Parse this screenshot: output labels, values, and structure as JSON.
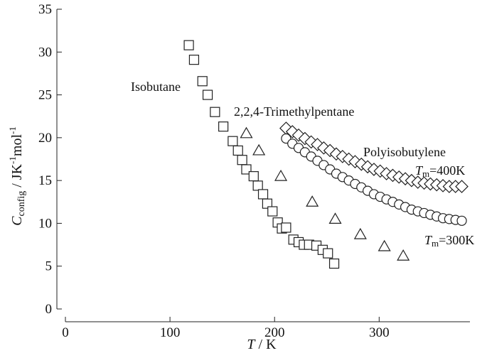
{
  "chart_data": {
    "type": "scatter",
    "xlim": [
      0,
      380
    ],
    "ylim": [
      0,
      35
    ],
    "x_ticks": [
      0,
      100,
      200,
      300
    ],
    "y_ticks": [
      0,
      5,
      10,
      15,
      20,
      25,
      30,
      35
    ],
    "grid": false,
    "xlabel": {
      "main": "T",
      "sep": " / ",
      "unit": "K"
    },
    "ylabel": {
      "main": "C",
      "sub": "config",
      "sep": " / ",
      "unit1": "JK",
      "sup1": "-1",
      "unit2": "mol",
      "sup2": "-1"
    },
    "series": [
      {
        "name": "Isobutane",
        "marker": "square",
        "x": [
          118,
          123,
          131,
          136,
          143,
          151,
          160,
          165,
          169,
          173,
          180,
          184,
          189,
          193,
          198,
          203,
          207,
          211,
          218,
          223,
          228,
          233,
          240,
          246,
          251,
          257
        ],
        "y": [
          30.8,
          29.1,
          26.6,
          25.0,
          23.0,
          21.3,
          19.6,
          18.5,
          17.4,
          16.3,
          15.5,
          14.4,
          13.4,
          12.3,
          11.4,
          10.1,
          9.4,
          9.5,
          8.1,
          7.8,
          7.5,
          7.5,
          7.4,
          6.9,
          6.5,
          5.3
        ]
      },
      {
        "name": "2,2,4-Trimethylpentane",
        "marker": "triangle",
        "x": [
          173,
          185,
          206,
          236,
          258,
          282,
          305,
          323
        ],
        "y": [
          20.5,
          18.5,
          15.5,
          12.5,
          10.5,
          8.7,
          7.3,
          6.2
        ]
      },
      {
        "name": "Polyisobutylene",
        "note": "Tm=400K",
        "marker": "diamond",
        "x": [
          211,
          217,
          223,
          229,
          235,
          241,
          247,
          253,
          259,
          265,
          271,
          277,
          283,
          289,
          295,
          301,
          307,
          313,
          319,
          325,
          331,
          337,
          343,
          349,
          355,
          361,
          367,
          373,
          379
        ],
        "y": [
          21.1,
          20.7,
          20.3,
          19.9,
          19.5,
          19.2,
          18.8,
          18.5,
          18.1,
          17.8,
          17.5,
          17.2,
          16.9,
          16.6,
          16.3,
          16.1,
          15.8,
          15.6,
          15.4,
          15.2,
          15.0,
          14.8,
          14.7,
          14.6,
          14.5,
          14.4,
          14.3,
          14.3,
          14.3
        ]
      },
      {
        "name": "",
        "note": "Tm=300K",
        "marker": "circle",
        "x": [
          211,
          217,
          223,
          229,
          235,
          241,
          247,
          253,
          259,
          265,
          271,
          277,
          283,
          289,
          295,
          301,
          307,
          313,
          319,
          325,
          331,
          337,
          343,
          349,
          355,
          361,
          367,
          373,
          379
        ],
        "y": [
          19.9,
          19.3,
          18.8,
          18.3,
          17.8,
          17.3,
          16.8,
          16.3,
          15.8,
          15.4,
          15.0,
          14.6,
          14.2,
          13.8,
          13.4,
          13.1,
          12.8,
          12.5,
          12.2,
          11.9,
          11.6,
          11.4,
          11.2,
          11.0,
          10.8,
          10.6,
          10.5,
          10.4,
          10.3
        ]
      }
    ],
    "annotations": {
      "isobutane": "Isobutane",
      "tmp": "2,2,4-Trimethylpentane",
      "pib": "Polyisobutylene",
      "tm400_main": "T",
      "tm400_sub": "m",
      "tm400_rest": "=400K",
      "tm300_main": "T",
      "tm300_sub": "m",
      "tm300_rest": "=300K"
    }
  }
}
